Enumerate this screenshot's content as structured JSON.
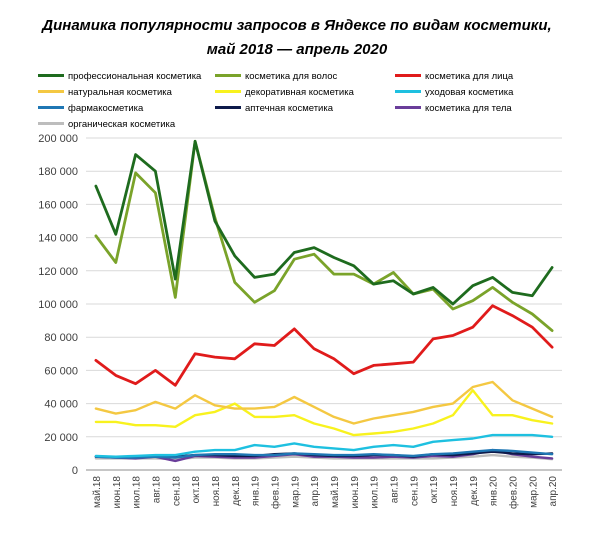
{
  "chart_data": {
    "type": "line",
    "title": "Динамика популярности запросов в Яндексе по видам косметики,",
    "subtitle": "май 2018 — апрель 2020",
    "xlabel": "",
    "ylabel": "",
    "ylim": [
      0,
      200000
    ],
    "yticks": [
      0,
      20000,
      40000,
      60000,
      80000,
      100000,
      120000,
      140000,
      160000,
      180000,
      200000
    ],
    "ytick_labels": [
      "0",
      "20 000",
      "40 000",
      "60 000",
      "80 000",
      "100 000",
      "120 000",
      "140 000",
      "160 000",
      "180 000",
      "200 000"
    ],
    "grid": "horizontal",
    "legend_position": "top",
    "categories": [
      "май.18",
      "июн.18",
      "июл.18",
      "авг.18",
      "сен.18",
      "окт.18",
      "ноя.18",
      "дек.18",
      "янв.19",
      "фев.19",
      "мар.19",
      "апр.19",
      "май.19",
      "июн.19",
      "июл.19",
      "авг.19",
      "сен.19",
      "окт.19",
      "ноя.19",
      "дек.19",
      "янв.20",
      "фев.20",
      "мар.20",
      "апр.20"
    ],
    "series": [
      {
        "name": "профессиональная косметика",
        "color": "#1e6b1e",
        "values": [
          171000,
          142000,
          190000,
          180000,
          115000,
          198000,
          150000,
          129000,
          116000,
          118000,
          131000,
          134000,
          128000,
          123000,
          112000,
          114000,
          106000,
          110000,
          100000,
          111000,
          116000,
          107000,
          105000,
          122000
        ]
      },
      {
        "name": "косметика для волос",
        "color": "#7aa32a",
        "values": [
          141000,
          125000,
          179000,
          167000,
          104000,
          198000,
          152000,
          113000,
          101000,
          108000,
          127000,
          130000,
          118000,
          118000,
          112000,
          119000,
          106000,
          109000,
          97000,
          102000,
          110000,
          101000,
          94000,
          84000
        ]
      },
      {
        "name": "косметика для лица",
        "color": "#e01b1b",
        "values": [
          66000,
          57000,
          52000,
          60000,
          51000,
          70000,
          68000,
          67000,
          76000,
          75000,
          85000,
          73000,
          67000,
          58000,
          63000,
          64000,
          65000,
          79000,
          81000,
          86000,
          99000,
          93000,
          86000,
          74000
        ]
      },
      {
        "name": "натуральная косметика",
        "color": "#f4c842",
        "values": [
          37000,
          34000,
          36000,
          41000,
          37000,
          45000,
          39000,
          37000,
          37000,
          38000,
          44000,
          38000,
          32000,
          28000,
          31000,
          33000,
          35000,
          38000,
          40000,
          50000,
          53000,
          42000,
          37000,
          32000
        ]
      },
      {
        "name": "декоративная косметика",
        "color": "#f8f21e",
        "values": [
          29000,
          29000,
          27000,
          27000,
          26000,
          33000,
          35000,
          40000,
          32000,
          32000,
          33000,
          28000,
          25000,
          21000,
          22000,
          23000,
          25000,
          28000,
          33000,
          48000,
          33000,
          33000,
          30000,
          28000
        ]
      },
      {
        "name": "уходовая косметика",
        "color": "#1ec0e0",
        "values": [
          8500,
          8000,
          8500,
          9000,
          9000,
          11000,
          12000,
          12000,
          15000,
          14000,
          16000,
          14000,
          13000,
          12000,
          14000,
          15000,
          14000,
          17000,
          18000,
          19000,
          21000,
          21000,
          21000,
          20000
        ]
      },
      {
        "name": "фармакосметика",
        "color": "#1f77b4",
        "values": [
          8000,
          7500,
          7500,
          8000,
          7500,
          9000,
          9500,
          9500,
          9000,
          9000,
          10000,
          9500,
          9000,
          9000,
          9500,
          9000,
          8500,
          9500,
          10000,
          11000,
          12000,
          11500,
          10500,
          9500
        ]
      },
      {
        "name": "аптечная косметика",
        "color": "#0d1a4a",
        "values": [
          8000,
          8000,
          8000,
          8500,
          8000,
          9000,
          9000,
          8500,
          8500,
          9500,
          10000,
          9000,
          8500,
          8500,
          9000,
          9000,
          8000,
          9500,
          9000,
          10000,
          11000,
          10000,
          9500,
          10000
        ]
      },
      {
        "name": "косметика для тела",
        "color": "#6a3d9a",
        "values": [
          8000,
          7500,
          7000,
          8000,
          5500,
          8500,
          8000,
          7500,
          7500,
          8500,
          9500,
          8000,
          8000,
          7500,
          7500,
          8000,
          7500,
          8500,
          8000,
          9500,
          12000,
          9500,
          8000,
          7000
        ]
      },
      {
        "name": "органическая косметика",
        "color": "#bdbdbd",
        "values": [
          7000,
          7000,
          7000,
          7000,
          6500,
          7500,
          7500,
          7000,
          7000,
          7500,
          8000,
          7500,
          7000,
          7000,
          7000,
          7000,
          7000,
          7000,
          7500,
          8000,
          9000,
          8000,
          7500,
          6500
        ]
      }
    ]
  }
}
